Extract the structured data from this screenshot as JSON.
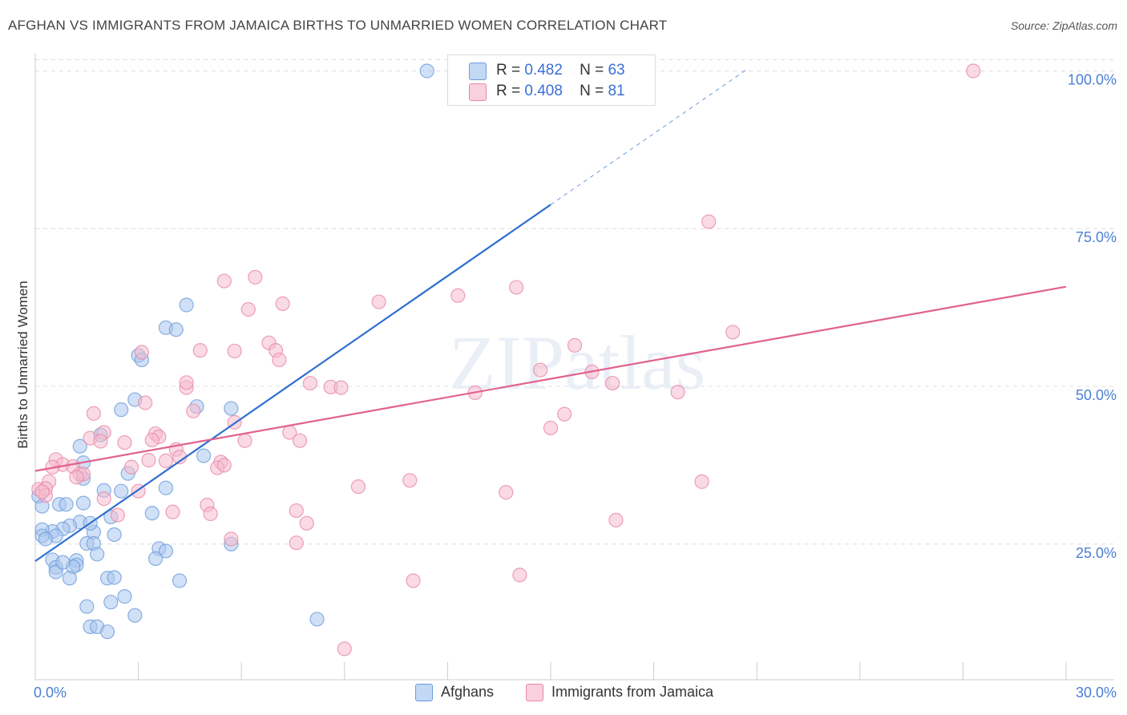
{
  "title": "AFGHAN VS IMMIGRANTS FROM JAMAICA BIRTHS TO UNMARRIED WOMEN CORRELATION CHART",
  "source": "Source: ZipAtlas.com",
  "watermark": "ZIPatlas",
  "legend_stats": [
    {
      "r_label": "R =",
      "r_value": "0.482",
      "n_label": "N =",
      "n_value": "63"
    },
    {
      "r_label": "R =",
      "r_value": "0.408",
      "n_label": "N =",
      "n_value": "81"
    }
  ],
  "colors": {
    "afghans_fill": "#a9c7ef",
    "afghans_stroke": "#6e9ddc",
    "afghans_line": "#2f6fcf",
    "jamaica_fill": "#f6bccd",
    "jamaica_stroke": "#e889a8",
    "jamaica_line": "#e0628d",
    "tick_label": "#4a7fd4",
    "grid": "#dddddd"
  },
  "chart_data": {
    "type": "scatter",
    "title": "AFGHAN VS IMMIGRANTS FROM JAMAICA BIRTHS TO UNMARRIED WOMEN CORRELATION CHART",
    "xlabel": "",
    "ylabel": "Births to Unmarried Women",
    "xlim": [
      0,
      30
    ],
    "ylim": [
      3.5,
      104
    ],
    "x_tick_labels": [
      "0.0%",
      "30.0%"
    ],
    "y_ticks": [
      25,
      50,
      75,
      100
    ],
    "y_tick_labels": [
      "25.0%",
      "50.0%",
      "75.0%",
      "100.0%"
    ],
    "legend": [
      "Afghans",
      "Immigrants from Jamaica"
    ],
    "series": [
      {
        "name": "Afghans",
        "trend": {
          "x0": 0,
          "y0": 22.3,
          "x1": 15,
          "y1": 78.8,
          "dash_x1": 20.7,
          "dash_y1": 100.2
        },
        "points": [
          [
            11.4,
            100
          ],
          [
            4.4,
            62.9
          ],
          [
            3.8,
            59.3
          ],
          [
            4.1,
            59
          ],
          [
            3.0,
            54.9
          ],
          [
            3.1,
            54.2
          ],
          [
            2.9,
            47.9
          ],
          [
            2.5,
            46.3
          ],
          [
            5.7,
            46.5
          ],
          [
            1.3,
            40.5
          ],
          [
            4.9,
            39
          ],
          [
            1.9,
            42.3
          ],
          [
            2.5,
            33.4
          ],
          [
            3.8,
            33.9
          ],
          [
            1.4,
            37.9
          ],
          [
            1.4,
            35.4
          ],
          [
            0.1,
            32.6
          ],
          [
            0.2,
            31
          ],
          [
            0.7,
            31.3
          ],
          [
            0.9,
            31.3
          ],
          [
            1.4,
            31.5
          ],
          [
            3.4,
            29.9
          ],
          [
            1.3,
            28.5
          ],
          [
            1.0,
            27.9
          ],
          [
            2.2,
            29.3
          ],
          [
            0.8,
            27.4
          ],
          [
            0.5,
            27
          ],
          [
            0.6,
            26.3
          ],
          [
            0.2,
            27.3
          ],
          [
            0.2,
            26.3
          ],
          [
            1.7,
            26.9
          ],
          [
            2.3,
            26.5
          ],
          [
            0.3,
            25.8
          ],
          [
            1.5,
            25.1
          ],
          [
            1.7,
            25.1
          ],
          [
            5.7,
            25
          ],
          [
            3.6,
            24.3
          ],
          [
            3.8,
            23.9
          ],
          [
            1.8,
            23.4
          ],
          [
            0.5,
            22.5
          ],
          [
            1.2,
            22.4
          ],
          [
            3.5,
            22.7
          ],
          [
            0.6,
            21.3
          ],
          [
            1.2,
            21.7
          ],
          [
            1.1,
            21.4
          ],
          [
            0.6,
            20.6
          ],
          [
            1.0,
            19.6
          ],
          [
            2.1,
            19.6
          ],
          [
            2.3,
            19.7
          ],
          [
            4.2,
            19.2
          ],
          [
            2.6,
            16.7
          ],
          [
            1.5,
            15.1
          ],
          [
            2.2,
            15.8
          ],
          [
            2.9,
            13.7
          ],
          [
            8.2,
            13.1
          ],
          [
            1.6,
            11.9
          ],
          [
            1.8,
            11.9
          ],
          [
            2.1,
            11.1
          ],
          [
            0.8,
            22.1
          ],
          [
            1.6,
            28.3
          ],
          [
            2.0,
            33.5
          ],
          [
            4.7,
            46.8
          ],
          [
            2.7,
            36.2
          ]
        ]
      },
      {
        "name": "Immigrants from Jamaica",
        "trend": {
          "x0": 0,
          "y0": 36.6,
          "x1": 30,
          "y1": 65.8
        },
        "points": [
          [
            27.3,
            100
          ],
          [
            19.6,
            76.1
          ],
          [
            6.4,
            67.3
          ],
          [
            5.5,
            66.7
          ],
          [
            14.0,
            65.7
          ],
          [
            12.3,
            64.4
          ],
          [
            10.0,
            63.4
          ],
          [
            7.2,
            63.1
          ],
          [
            6.2,
            62.2
          ],
          [
            20.3,
            58.6
          ],
          [
            15.7,
            56.5
          ],
          [
            6.8,
            56.9
          ],
          [
            7.0,
            55.7
          ],
          [
            4.8,
            55.7
          ],
          [
            3.1,
            55.4
          ],
          [
            5.8,
            55.6
          ],
          [
            7.1,
            54.2
          ],
          [
            14.7,
            52.6
          ],
          [
            16.2,
            52.3
          ],
          [
            16.8,
            50.5
          ],
          [
            8.0,
            50.5
          ],
          [
            8.6,
            49.9
          ],
          [
            8.9,
            49.8
          ],
          [
            4.4,
            49.8
          ],
          [
            4.4,
            50.6
          ],
          [
            18.7,
            49.1
          ],
          [
            12.8,
            49
          ],
          [
            3.2,
            47.4
          ],
          [
            4.6,
            46.1
          ],
          [
            1.7,
            45.7
          ],
          [
            15.4,
            45.6
          ],
          [
            5.8,
            44.3
          ],
          [
            15.0,
            43.4
          ],
          [
            7.4,
            42.7
          ],
          [
            2.0,
            42.7
          ],
          [
            3.5,
            42.5
          ],
          [
            3.6,
            42
          ],
          [
            1.6,
            41.8
          ],
          [
            3.4,
            41.5
          ],
          [
            1.9,
            41.3
          ],
          [
            2.6,
            41.1
          ],
          [
            7.7,
            41.4
          ],
          [
            4.1,
            40
          ],
          [
            6.1,
            41.4
          ],
          [
            4.2,
            38.8
          ],
          [
            3.8,
            38.2
          ],
          [
            0.6,
            38.4
          ],
          [
            0.8,
            37.6
          ],
          [
            1.1,
            37.3
          ],
          [
            0.5,
            37.2
          ],
          [
            2.8,
            37.2
          ],
          [
            5.4,
            38
          ],
          [
            5.3,
            37.1
          ],
          [
            1.3,
            36.1
          ],
          [
            1.4,
            36.1
          ],
          [
            1.2,
            35.6
          ],
          [
            0.4,
            34.9
          ],
          [
            10.9,
            35.1
          ],
          [
            19.4,
            34.9
          ],
          [
            9.4,
            34.1
          ],
          [
            0.1,
            33.7
          ],
          [
            0.3,
            33.8
          ],
          [
            3.0,
            33.4
          ],
          [
            0.3,
            32.7
          ],
          [
            2.0,
            32.2
          ],
          [
            5.0,
            31.2
          ],
          [
            13.7,
            33.2
          ],
          [
            7.6,
            30.3
          ],
          [
            4.0,
            30.1
          ],
          [
            5.1,
            29.8
          ],
          [
            2.4,
            29.6
          ],
          [
            16.9,
            28.8
          ],
          [
            7.9,
            28.3
          ],
          [
            5.7,
            25.8
          ],
          [
            7.6,
            25.2
          ],
          [
            14.1,
            20.1
          ],
          [
            11.0,
            19.2
          ],
          [
            9.0,
            8.4
          ],
          [
            5.5,
            37.5
          ],
          [
            3.3,
            38.3
          ],
          [
            0.2,
            33.3
          ]
        ]
      }
    ]
  }
}
